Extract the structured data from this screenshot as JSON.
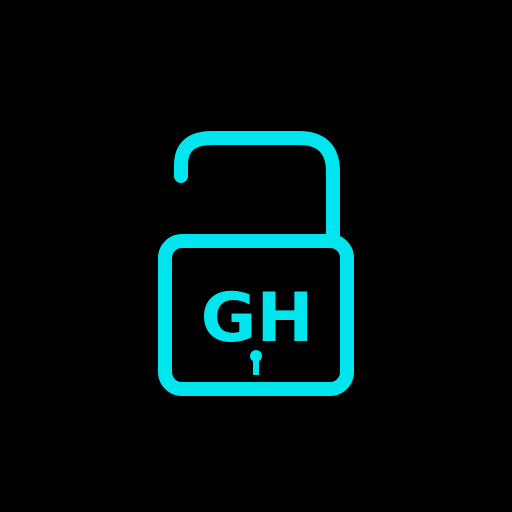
{
  "icon": {
    "name": "open-padlock-icon",
    "text": "GH",
    "color": "#00E5EE",
    "background": "#000000"
  }
}
